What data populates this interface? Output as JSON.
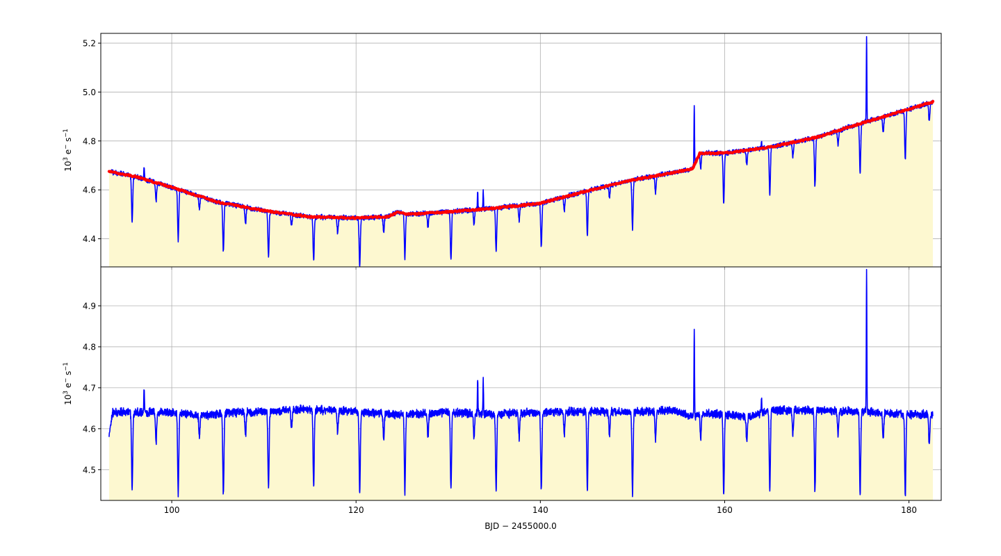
{
  "colors": {
    "raw_line": "#0000ff",
    "trend_line": "#ff0000",
    "fill": "#fdf8d0",
    "grid": "#b0b0b0"
  },
  "chart_data": [
    {
      "type": "line",
      "panel": "top",
      "title": "",
      "ylabel_main": "10",
      "ylabel_exp": "3",
      "ylabel_rest": " e",
      "ylabel_minus": "−",
      "ylabel_unit": " s",
      "ylabel_unit_exp": "−1",
      "xlim": [
        92.3,
        183.5
      ],
      "ylim": [
        4.285,
        5.24
      ],
      "xticks": [
        100,
        120,
        140,
        160,
        180
      ],
      "yticks": [
        4.4,
        4.6,
        4.8,
        5.0,
        5.2
      ],
      "ytick_labels": [
        "4.4",
        "4.6",
        "4.8",
        "5.0",
        "5.2"
      ],
      "grid": true,
      "fill_below": true,
      "series": [
        {
          "role": "raw-flux",
          "color": "#0000ff",
          "baseline_points": [
            [
              93.2,
              4.675
            ],
            [
              96.0,
              4.655
            ],
            [
              100.0,
              4.61
            ],
            [
              105.0,
              4.55
            ],
            [
              110.0,
              4.515
            ],
            [
              115.0,
              4.49
            ],
            [
              120.0,
              4.485
            ],
            [
              123.5,
              4.49
            ],
            [
              124.5,
              4.51
            ],
            [
              125.5,
              4.5
            ],
            [
              130.0,
              4.51
            ],
            [
              135.0,
              4.525
            ],
            [
              140.0,
              4.545
            ],
            [
              145.0,
              4.595
            ],
            [
              150.0,
              4.64
            ],
            [
              155.0,
              4.675
            ],
            [
              156.5,
              4.685
            ],
            [
              157.3,
              4.75
            ],
            [
              160.0,
              4.75
            ],
            [
              165.0,
              4.775
            ],
            [
              170.0,
              4.815
            ],
            [
              175.0,
              4.875
            ],
            [
              180.0,
              4.93
            ],
            [
              182.6,
              4.96
            ]
          ],
          "dips": [
            [
              95.7,
              0.19
            ],
            [
              98.3,
              0.07
            ],
            [
              100.7,
              0.21
            ],
            [
              103.0,
              0.05
            ],
            [
              105.6,
              0.2
            ],
            [
              108.0,
              0.07
            ],
            [
              110.5,
              0.19
            ],
            [
              113.0,
              0.05
            ],
            [
              115.4,
              0.18
            ],
            [
              118.0,
              0.06
            ],
            [
              120.4,
              0.2
            ],
            [
              123.0,
              0.06
            ],
            [
              125.3,
              0.18
            ],
            [
              127.8,
              0.06
            ],
            [
              130.3,
              0.2
            ],
            [
              132.8,
              0.06
            ],
            [
              135.2,
              0.18
            ],
            [
              137.7,
              0.06
            ],
            [
              140.1,
              0.18
            ],
            [
              142.6,
              0.06
            ],
            [
              145.1,
              0.18
            ],
            [
              147.5,
              0.05
            ],
            [
              150.0,
              0.2
            ],
            [
              152.5,
              0.07
            ],
            [
              157.4,
              0.06
            ],
            [
              159.9,
              0.21
            ],
            [
              162.4,
              0.06
            ],
            [
              164.9,
              0.2
            ],
            [
              167.4,
              0.06
            ],
            [
              169.8,
              0.2
            ],
            [
              172.3,
              0.06
            ],
            [
              174.7,
              0.2
            ],
            [
              177.2,
              0.06
            ],
            [
              179.6,
              0.2
            ],
            [
              182.2,
              0.07
            ]
          ],
          "spikes": [
            [
              97.0,
              0.05
            ],
            [
              133.2,
              0.08
            ],
            [
              133.8,
              0.07
            ],
            [
              156.7,
              0.25
            ],
            [
              164.0,
              0.03
            ],
            [
              175.4,
              0.35
            ]
          ]
        },
        {
          "role": "trend-fit",
          "color": "#ff0000",
          "points": [
            [
              93.2,
              4.675
            ],
            [
              96.0,
              4.655
            ],
            [
              100.0,
              4.61
            ],
            [
              105.0,
              4.55
            ],
            [
              110.0,
              4.515
            ],
            [
              115.0,
              4.49
            ],
            [
              120.0,
              4.485
            ],
            [
              123.5,
              4.49
            ],
            [
              124.5,
              4.51
            ],
            [
              125.5,
              4.5
            ],
            [
              130.0,
              4.51
            ],
            [
              135.0,
              4.525
            ],
            [
              140.0,
              4.545
            ],
            [
              145.0,
              4.595
            ],
            [
              150.0,
              4.64
            ],
            [
              155.0,
              4.675
            ],
            [
              156.5,
              4.685
            ],
            [
              157.3,
              4.75
            ],
            [
              160.0,
              4.75
            ],
            [
              165.0,
              4.775
            ],
            [
              170.0,
              4.815
            ],
            [
              175.0,
              4.875
            ],
            [
              180.0,
              4.93
            ],
            [
              182.6,
              4.96
            ]
          ]
        }
      ]
    },
    {
      "type": "line",
      "panel": "bottom",
      "title": "",
      "xlabel": "BJD − 2455000.0",
      "ylabel_main": "10",
      "ylabel_exp": "3",
      "ylabel_rest": " e",
      "ylabel_minus": "−",
      "ylabel_unit": " s",
      "ylabel_unit_exp": "−1",
      "xlim": [
        92.3,
        183.5
      ],
      "ylim": [
        4.425,
        4.995
      ],
      "xticks": [
        100,
        120,
        140,
        160,
        180
      ],
      "xtick_labels": [
        "100",
        "120",
        "140",
        "160",
        "180"
      ],
      "yticks": [
        4.5,
        4.6,
        4.7,
        4.8,
        4.9
      ],
      "ytick_labels": [
        "4.5",
        "4.6",
        "4.7",
        "4.8",
        "4.9"
      ],
      "grid": true,
      "fill_below": true,
      "series": [
        {
          "role": "detrended-flux",
          "color": "#0000ff",
          "baseline_points": [
            [
              93.2,
              4.585
            ],
            [
              93.6,
              4.64
            ],
            [
              100.0,
              4.64
            ],
            [
              103.0,
              4.632
            ],
            [
              106.0,
              4.638
            ],
            [
              110.0,
              4.642
            ],
            [
              114.0,
              4.648
            ],
            [
              120.0,
              4.642
            ],
            [
              124.0,
              4.634
            ],
            [
              130.0,
              4.64
            ],
            [
              135.0,
              4.635
            ],
            [
              140.0,
              4.64
            ],
            [
              145.0,
              4.642
            ],
            [
              150.0,
              4.64
            ],
            [
              154.5,
              4.645
            ],
            [
              156.6,
              4.628
            ],
            [
              157.3,
              4.637
            ],
            [
              160.0,
              4.635
            ],
            [
              162.5,
              4.628
            ],
            [
              165.0,
              4.645
            ],
            [
              170.0,
              4.645
            ],
            [
              175.0,
              4.642
            ],
            [
              180.0,
              4.635
            ],
            [
              182.6,
              4.635
            ]
          ],
          "dips": [
            [
              95.7,
              0.19
            ],
            [
              98.3,
              0.07
            ],
            [
              100.7,
              0.2
            ],
            [
              103.0,
              0.05
            ],
            [
              105.6,
              0.2
            ],
            [
              108.0,
              0.06
            ],
            [
              110.5,
              0.19
            ],
            [
              113.0,
              0.05
            ],
            [
              115.4,
              0.19
            ],
            [
              118.0,
              0.05
            ],
            [
              120.4,
              0.2
            ],
            [
              123.0,
              0.06
            ],
            [
              125.3,
              0.19
            ],
            [
              127.8,
              0.06
            ],
            [
              130.3,
              0.19
            ],
            [
              132.8,
              0.06
            ],
            [
              135.2,
              0.19
            ],
            [
              137.7,
              0.06
            ],
            [
              140.1,
              0.19
            ],
            [
              142.6,
              0.06
            ],
            [
              145.1,
              0.19
            ],
            [
              147.5,
              0.06
            ],
            [
              150.0,
              0.2
            ],
            [
              152.5,
              0.07
            ],
            [
              157.4,
              0.06
            ],
            [
              159.9,
              0.2
            ],
            [
              162.4,
              0.06
            ],
            [
              164.9,
              0.2
            ],
            [
              167.4,
              0.06
            ],
            [
              169.8,
              0.2
            ],
            [
              172.3,
              0.06
            ],
            [
              174.7,
              0.2
            ],
            [
              177.2,
              0.06
            ],
            [
              179.6,
              0.2
            ],
            [
              182.2,
              0.07
            ]
          ],
          "spikes": [
            [
              97.0,
              0.06
            ],
            [
              133.2,
              0.09
            ],
            [
              133.8,
              0.08
            ],
            [
              156.7,
              0.22
            ],
            [
              164.0,
              0.04
            ],
            [
              175.4,
              0.35
            ]
          ]
        }
      ]
    }
  ]
}
